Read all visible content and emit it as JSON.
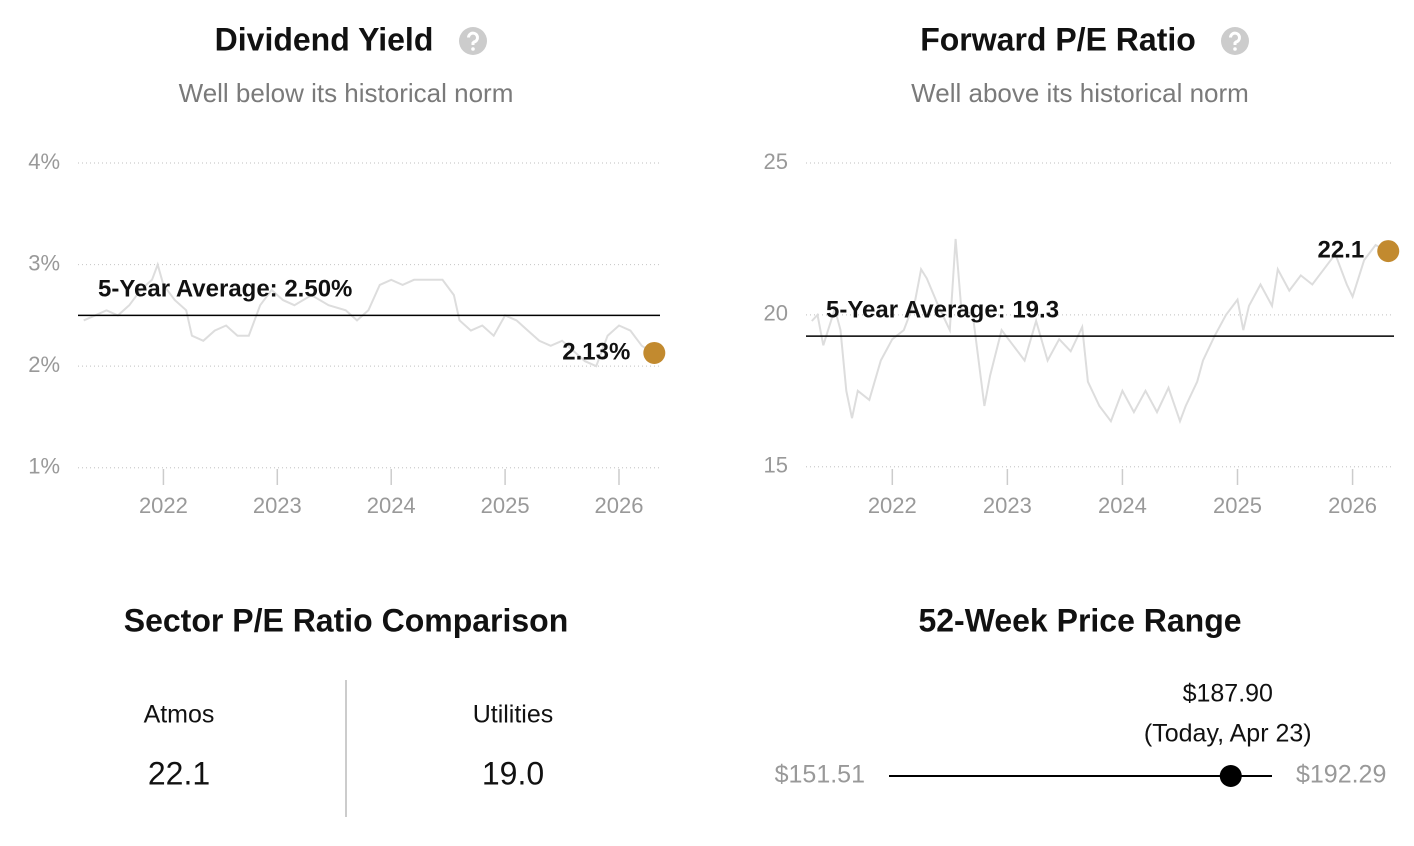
{
  "chart_data": [
    {
      "type": "line",
      "title": "Dividend Yield",
      "subtitle": "Well below its historical norm",
      "x": [
        2021.3,
        2021.4,
        2021.5,
        2021.6,
        2021.7,
        2021.8,
        2021.9,
        2021.95,
        2022.0,
        2022.1,
        2022.2,
        2022.25,
        2022.35,
        2022.45,
        2022.55,
        2022.65,
        2022.75,
        2022.85,
        2022.95,
        2023.05,
        2023.15,
        2023.3,
        2023.45,
        2023.6,
        2023.7,
        2023.8,
        2023.9,
        2024.0,
        2024.1,
        2024.2,
        2024.35,
        2024.45,
        2024.55,
        2024.6,
        2024.7,
        2024.8,
        2024.9,
        2025.0,
        2025.1,
        2025.2,
        2025.3,
        2025.4,
        2025.5,
        2025.6,
        2025.7,
        2025.8,
        2025.9,
        2026.0,
        2026.1,
        2026.2,
        2026.3
      ],
      "values": [
        2.45,
        2.5,
        2.55,
        2.5,
        2.6,
        2.75,
        2.85,
        3.0,
        2.8,
        2.65,
        2.55,
        2.3,
        2.25,
        2.35,
        2.4,
        2.3,
        2.3,
        2.6,
        2.75,
        2.65,
        2.6,
        2.7,
        2.6,
        2.55,
        2.45,
        2.55,
        2.8,
        2.85,
        2.8,
        2.85,
        2.85,
        2.85,
        2.7,
        2.45,
        2.35,
        2.4,
        2.3,
        2.5,
        2.45,
        2.35,
        2.25,
        2.2,
        2.25,
        2.15,
        2.05,
        2.0,
        2.3,
        2.4,
        2.35,
        2.2,
        2.13
      ],
      "color": "#dddddd",
      "xlim": [
        2021.25,
        2026.36
      ],
      "xticks": [
        2022,
        2023,
        2024,
        2025,
        2026
      ],
      "ylim": [
        0.83,
        4
      ],
      "yticks": [
        {
          "value": 1,
          "label": "1%"
        },
        {
          "value": 2,
          "label": "2%"
        },
        {
          "value": 3,
          "label": "3%"
        },
        {
          "value": 4,
          "label": "4%"
        }
      ],
      "grid": true,
      "average": {
        "value": 2.5,
        "label": "5-Year Average: 2.50%"
      },
      "current": {
        "x": 2026.31,
        "value": 2.13,
        "label": "2.13%",
        "color": "#c28a2f"
      }
    },
    {
      "type": "line",
      "title": "Forward P/E Ratio",
      "subtitle": "Well above its historical norm",
      "x": [
        2021.3,
        2021.35,
        2021.4,
        2021.5,
        2021.55,
        2021.6,
        2021.65,
        2021.7,
        2021.8,
        2021.9,
        2022.0,
        2022.1,
        2022.2,
        2022.25,
        2022.3,
        2022.4,
        2022.5,
        2022.55,
        2022.6,
        2022.7,
        2022.75,
        2022.8,
        2022.85,
        2022.95,
        2023.05,
        2023.15,
        2023.25,
        2023.35,
        2023.45,
        2023.55,
        2023.65,
        2023.7,
        2023.8,
        2023.9,
        2024.0,
        2024.1,
        2024.2,
        2024.3,
        2024.4,
        2024.5,
        2024.55,
        2024.65,
        2024.7,
        2024.8,
        2024.9,
        2025.0,
        2025.05,
        2025.1,
        2025.2,
        2025.3,
        2025.35,
        2025.45,
        2025.55,
        2025.65,
        2025.75,
        2025.85,
        2025.95,
        2026.0,
        2026.1,
        2026.2,
        2026.3
      ],
      "values": [
        19.8,
        20.0,
        19.0,
        20.2,
        19.5,
        17.5,
        16.6,
        17.5,
        17.2,
        18.5,
        19.2,
        19.5,
        20.5,
        21.5,
        21.2,
        20.3,
        19.5,
        22.5,
        20.2,
        20.0,
        18.5,
        17.0,
        18.0,
        19.5,
        19.0,
        18.5,
        19.8,
        18.5,
        19.2,
        18.8,
        19.6,
        17.8,
        17.0,
        16.5,
        17.5,
        16.8,
        17.5,
        16.8,
        17.6,
        16.5,
        17.0,
        17.8,
        18.5,
        19.3,
        20.0,
        20.5,
        19.5,
        20.3,
        21.0,
        20.3,
        21.5,
        20.8,
        21.3,
        21.0,
        21.5,
        22.0,
        21.0,
        20.6,
        21.8,
        22.3,
        22.1
      ],
      "color": "#dddddd",
      "xlim": [
        2021.25,
        2026.36
      ],
      "xticks": [
        2022,
        2023,
        2024,
        2025,
        2026
      ],
      "ylim": [
        14.4,
        25
      ],
      "yticks": [
        15,
        20,
        25
      ],
      "grid": true,
      "average": {
        "value": 19.3,
        "label": "5-Year Average: 19.3"
      },
      "current": {
        "x": 2026.31,
        "value": 22.1,
        "label": "22.1",
        "color": "#c28a2f"
      }
    }
  ],
  "sector_comparison": {
    "title": "Sector P/E Ratio Comparison",
    "items": [
      {
        "label": "Atmos",
        "value": "22.1"
      },
      {
        "label": "Utilities",
        "value": "19.0"
      }
    ]
  },
  "price_range": {
    "title": "52-Week Price Range",
    "low": {
      "value": 151.51,
      "label": "$151.51"
    },
    "high": {
      "value": 192.29,
      "label": "$192.29"
    },
    "current": {
      "value": 187.9,
      "label": "$187.90",
      "note": "(Today, Apr 23)"
    }
  }
}
